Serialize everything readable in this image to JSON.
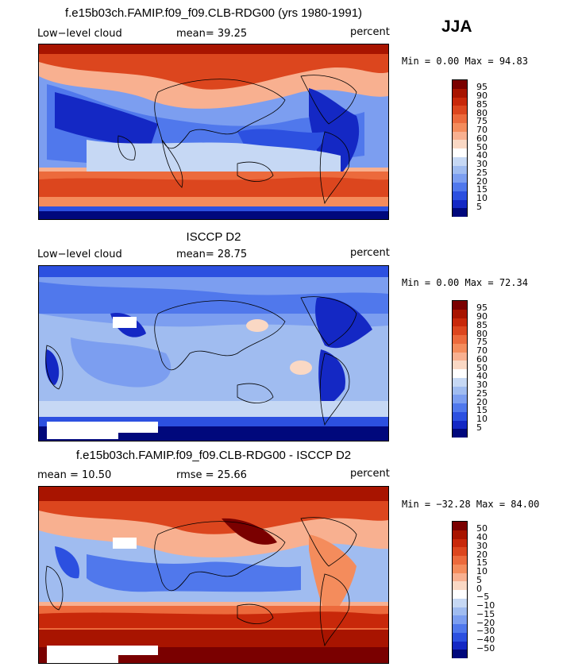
{
  "header": {
    "season": "JJA"
  },
  "panels": [
    {
      "title": "f.e15b03ch.FAMIP.f09_f09.CLB-RDG00 (yrs 1980-1991)",
      "left_label": "Low−level cloud",
      "stat_label": "mean=  39.25",
      "units": "percent",
      "minmax": "Min =   0.00 Max =  94.83"
    },
    {
      "title": "ISCCP D2",
      "left_label": "Low−level cloud",
      "stat_label": "mean=  28.75",
      "units": "percent",
      "minmax": "Min =   0.00 Max =  72.34"
    },
    {
      "title": "f.e15b03ch.FAMIP.f09_f09.CLB-RDG00 - ISCCP D2",
      "left_label": "mean =  10.50",
      "stat_label": "rmse =  25.66",
      "units": "percent",
      "minmax": "Min = −32.28 Max =  84.00"
    }
  ],
  "colorbars": {
    "absolute": {
      "labels": [
        "95",
        "90",
        "85",
        "80",
        "75",
        "70",
        "60",
        "50",
        "40",
        "30",
        "25",
        "20",
        "15",
        "10",
        "5"
      ],
      "colors": [
        "#7a0000",
        "#a81400",
        "#c8280a",
        "#dc461e",
        "#ec6a3c",
        "#f48c5c",
        "#f8b090",
        "#fad8c4",
        "#ffffff",
        "#c6d8f4",
        "#a0bcf0",
        "#7c9ef0",
        "#5078ec",
        "#2c50e0",
        "#1428c4",
        "#00087c"
      ]
    },
    "difference": {
      "labels": [
        "50",
        "40",
        "30",
        "20",
        "15",
        "10",
        "5",
        "0",
        "−5",
        "−10",
        "−15",
        "−20",
        "−30",
        "−40",
        "−50"
      ],
      "colors": [
        "#7a0000",
        "#a81400",
        "#c8280a",
        "#dc461e",
        "#ec6a3c",
        "#f48c5c",
        "#f8b090",
        "#fad8c4",
        "#ffffff",
        "#c6d8f4",
        "#a0bcf0",
        "#7c9ef0",
        "#5078ec",
        "#2c50e0",
        "#1428c4",
        "#00087c"
      ]
    }
  }
}
